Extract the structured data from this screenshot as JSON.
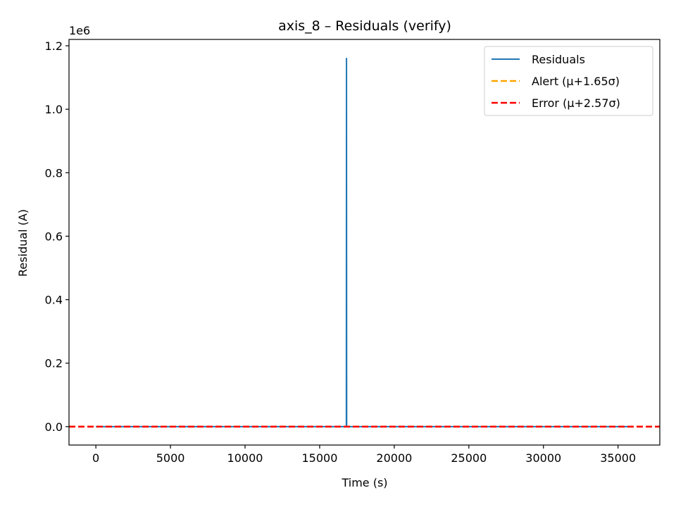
{
  "chart_data": {
    "type": "line",
    "title": "axis_8 – Residuals (verify)",
    "xlabel": "Time (s)",
    "ylabel": "Residual (A)",
    "y_offset_label": "1e6",
    "xlim": [
      -1800,
      37800
    ],
    "ylim": [
      -0.058,
      1.22
    ],
    "y_scale_factor": 1000000,
    "xticks": [
      0,
      5000,
      10000,
      15000,
      20000,
      25000,
      30000,
      35000
    ],
    "xtick_labels": [
      "0",
      "5000",
      "10000",
      "15000",
      "20000",
      "25000",
      "30000",
      "35000"
    ],
    "yticks": [
      0.0,
      0.2,
      0.4,
      0.6,
      0.8,
      1.0,
      1.2
    ],
    "ytick_labels": [
      "0.0",
      "0.2",
      "0.4",
      "0.6",
      "0.8",
      "1.0",
      "1.2"
    ],
    "grid": false,
    "legend_position": "top-right",
    "series": [
      {
        "name": "Residuals",
        "style": "solid",
        "color": "#1f77b4",
        "x": [
          0,
          16790,
          16800,
          16810,
          35900
        ],
        "y": [
          0.0,
          0.0,
          1.16,
          0.0,
          0.0
        ]
      }
    ],
    "hlines": [
      {
        "name": "Alert (μ+1.65σ)",
        "style": "dashed",
        "color": "#ffa500",
        "y": 0.0
      },
      {
        "name": "Error (μ+2.57σ)",
        "style": "dashed",
        "color": "#ff0000",
        "y": 0.0
      }
    ]
  }
}
